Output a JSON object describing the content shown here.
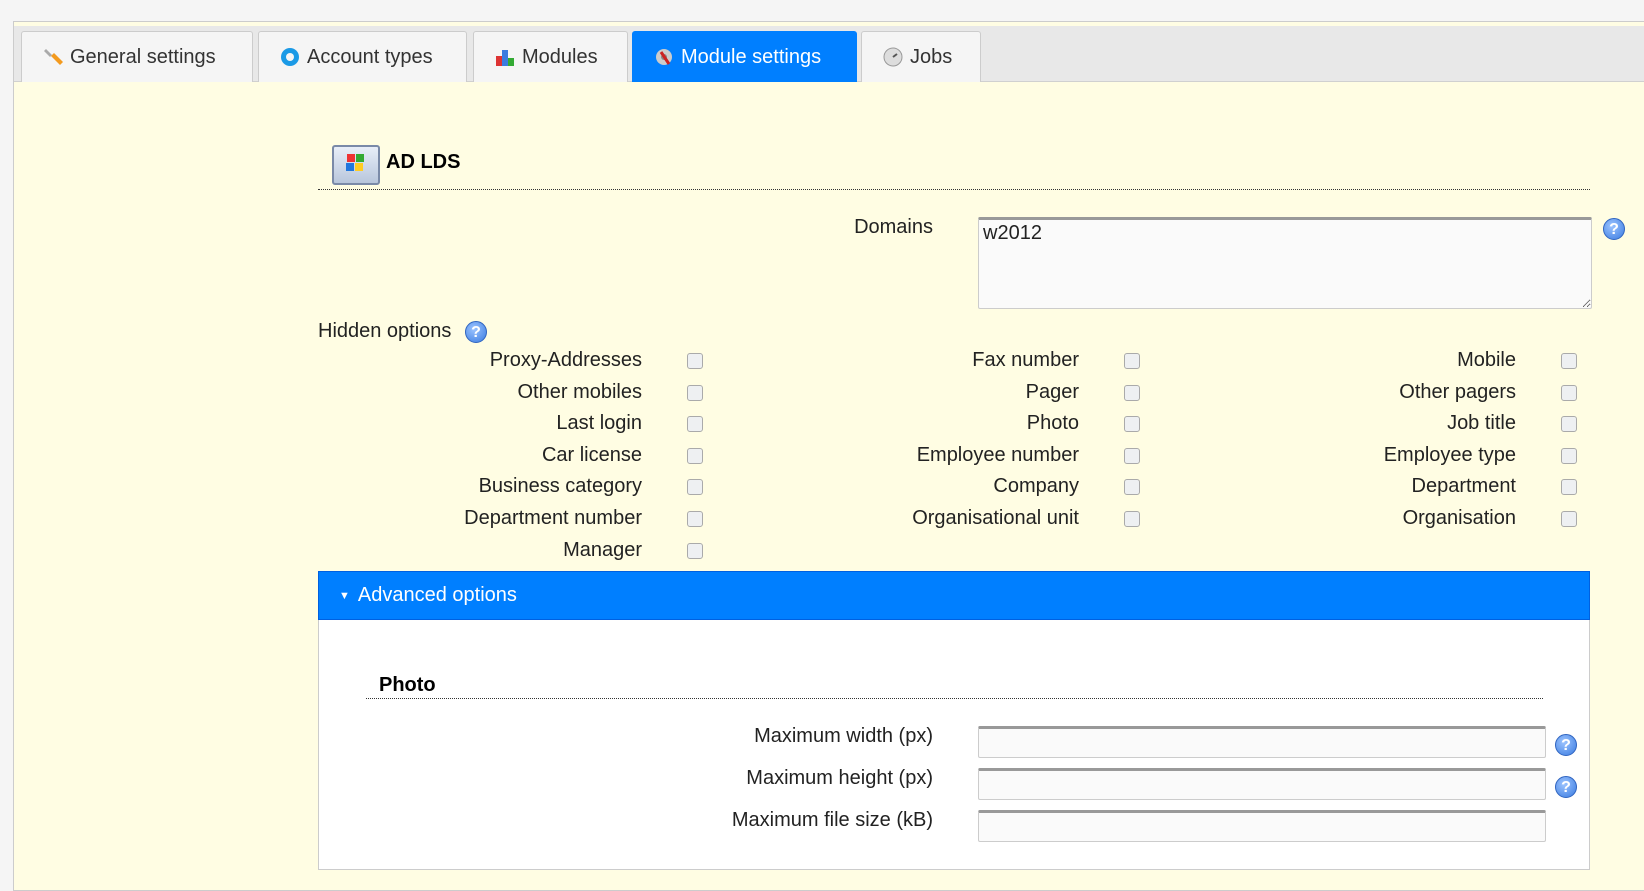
{
  "tabs": [
    {
      "label": "General settings",
      "icon": "wrench-icon"
    },
    {
      "label": "Account types",
      "icon": "gear-icon"
    },
    {
      "label": "Modules",
      "icon": "modules-icon"
    },
    {
      "label": "Module settings",
      "icon": "module-settings-icon",
      "active": true
    },
    {
      "label": "Jobs",
      "icon": "clock-icon"
    }
  ],
  "module": {
    "title": "AD LDS",
    "icon": "windows-logo-icon"
  },
  "domains": {
    "label": "Domains",
    "value": "w2012"
  },
  "hidden_options": {
    "label": "Hidden options",
    "items": [
      [
        "Proxy-Addresses",
        "Fax number",
        "Mobile"
      ],
      [
        "Other mobiles",
        "Pager",
        "Other pagers"
      ],
      [
        "Last login",
        "Photo",
        "Job title"
      ],
      [
        "Car license",
        "Employee number",
        "Employee type"
      ],
      [
        "Business category",
        "Company",
        "Department"
      ],
      [
        "Department number",
        "Organisational unit",
        "Organisation"
      ],
      [
        "Manager"
      ]
    ]
  },
  "advanced": {
    "label": "Advanced options",
    "expanded": true,
    "accent": "#007fff"
  },
  "photo": {
    "heading": "Photo",
    "fields": [
      {
        "label": "Maximum width (px)",
        "value": "",
        "help": true
      },
      {
        "label": "Maximum height (px)",
        "value": "",
        "help": true
      },
      {
        "label": "Maximum file size (kB)",
        "value": "",
        "help": false
      }
    ]
  }
}
